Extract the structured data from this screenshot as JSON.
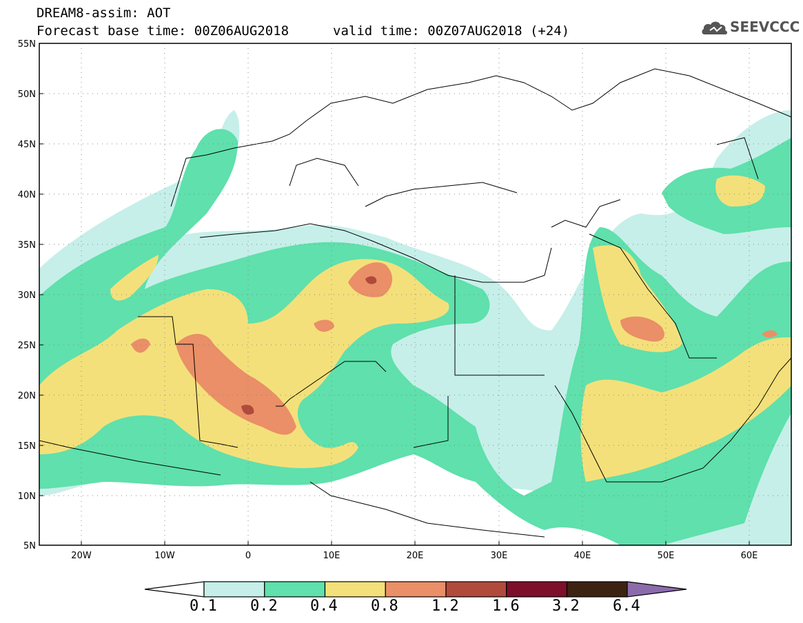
{
  "header": {
    "title": "DREAM8-assim: AOT",
    "forecast_base": "Forecast base time: 00Z06AUG2018",
    "valid_time": "valid time: 00Z07AUG2018 (+24)"
  },
  "logo": {
    "icon": "cloud-icon",
    "text": "SEEVCCC"
  },
  "axes": {
    "lat_labels": [
      "55N",
      "50N",
      "45N",
      "40N",
      "35N",
      "30N",
      "25N",
      "20N",
      "15N",
      "10N",
      "5N"
    ],
    "lon_labels": [
      "20W",
      "10W",
      "0",
      "10E",
      "20E",
      "30E",
      "40E",
      "50E",
      "60E"
    ]
  },
  "colorbar": {
    "levels": [
      "0.1",
      "0.2",
      "0.4",
      "0.8",
      "1.2",
      "1.6",
      "3.2",
      "6.4"
    ],
    "colors": [
      "#ffffff",
      "#c6efe9",
      "#5fe0ac",
      "#f4e07a",
      "#ea8f67",
      "#b04a3c",
      "#7d0f2a",
      "#3d2212",
      "#8b6bab"
    ]
  }
}
